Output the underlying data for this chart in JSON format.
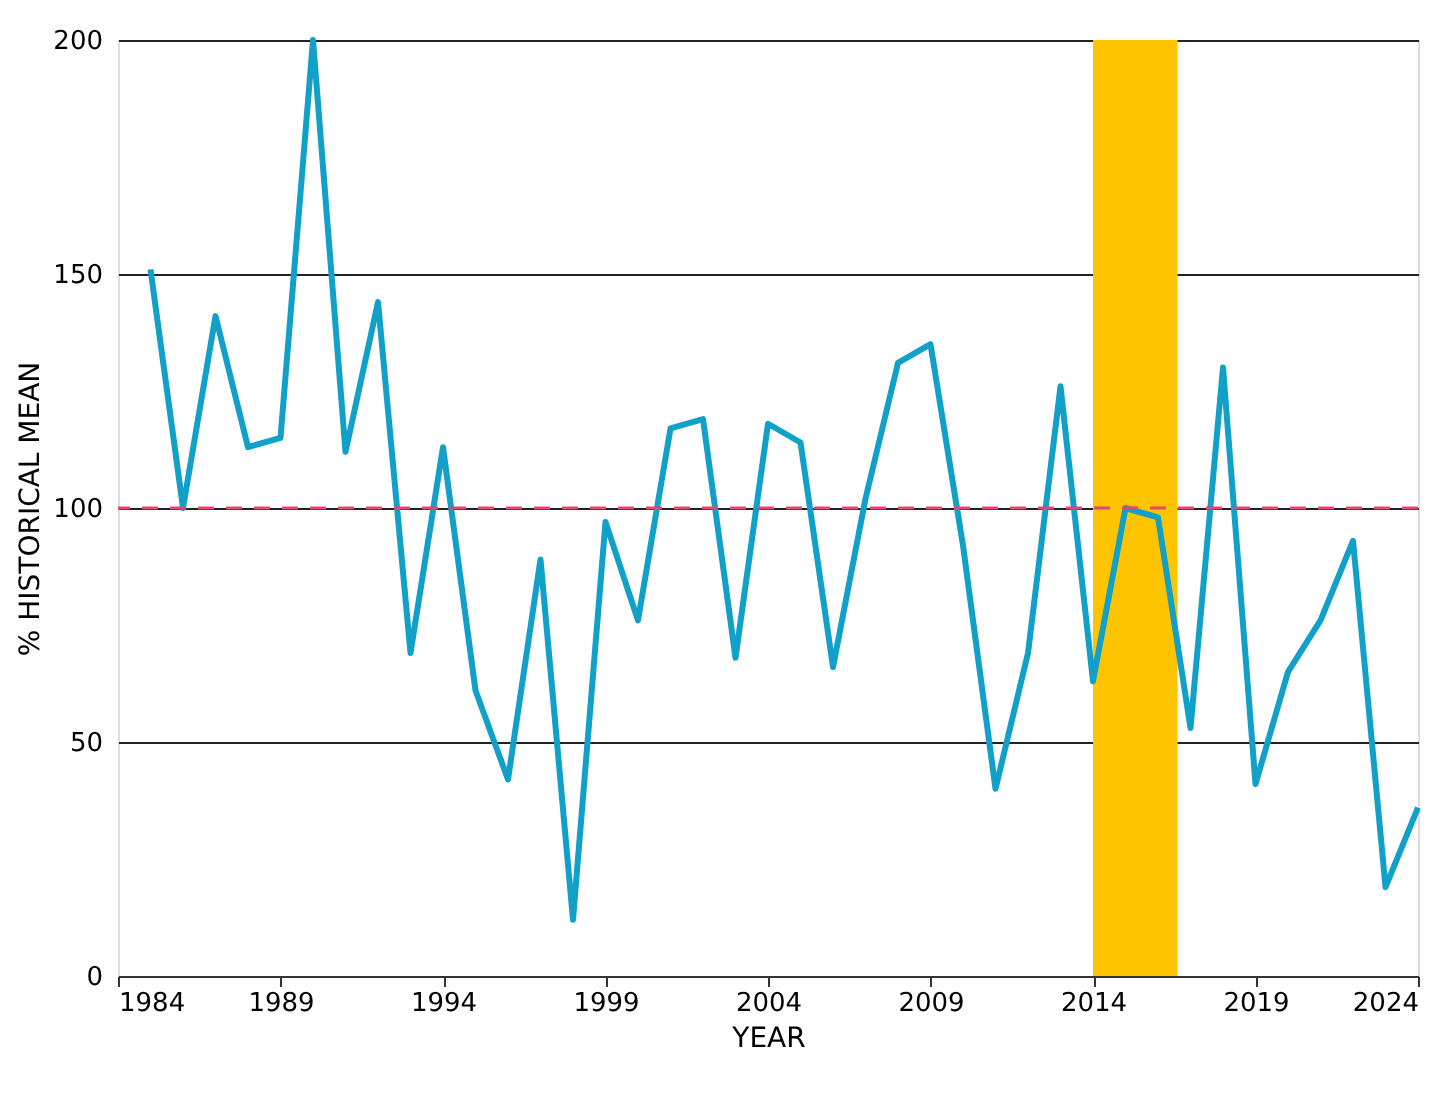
{
  "chart_data": {
    "type": "line",
    "xlabel": "YEAR",
    "ylabel": "% HISTORICAL MEAN",
    "x": [
      1985,
      1986,
      1987,
      1988,
      1989,
      1990,
      1991,
      1992,
      1993,
      1994,
      1995,
      1996,
      1997,
      1998,
      1999,
      2000,
      2001,
      2002,
      2003,
      2004,
      2005,
      2006,
      2007,
      2008,
      2009,
      2010,
      2011,
      2012,
      2013,
      2014,
      2015,
      2016,
      2017,
      2018,
      2019,
      2020,
      2021,
      2022,
      2023,
      2024
    ],
    "series": [
      {
        "color": "#10a0c8",
        "values": [
          151,
          100,
          141,
          113,
          115,
          200,
          112,
          144,
          69,
          113,
          61,
          42,
          89,
          12,
          97,
          76,
          117,
          119,
          68,
          118,
          114,
          66,
          102,
          131,
          135,
          92,
          40,
          69,
          126,
          63,
          100,
          98,
          53,
          130,
          41,
          65,
          76,
          93,
          19,
          36
        ]
      }
    ],
    "xlim": [
      1984,
      2024
    ],
    "xticks": [
      1984,
      1989,
      1994,
      1999,
      2004,
      2009,
      2014,
      2019,
      2024
    ],
    "ylim": [
      0,
      200
    ],
    "yticks": [
      0,
      50,
      100,
      150,
      200
    ],
    "grid": "y",
    "marker": "none",
    "line_style": "solid",
    "ref_lines": [
      {
        "axis": "y",
        "value": 100,
        "color": "#e8456a",
        "line_style": "dashed"
      }
    ],
    "bands": [
      {
        "axis": "x",
        "from": 2014,
        "to": 2016.6,
        "color": "#ffc400"
      }
    ]
  }
}
